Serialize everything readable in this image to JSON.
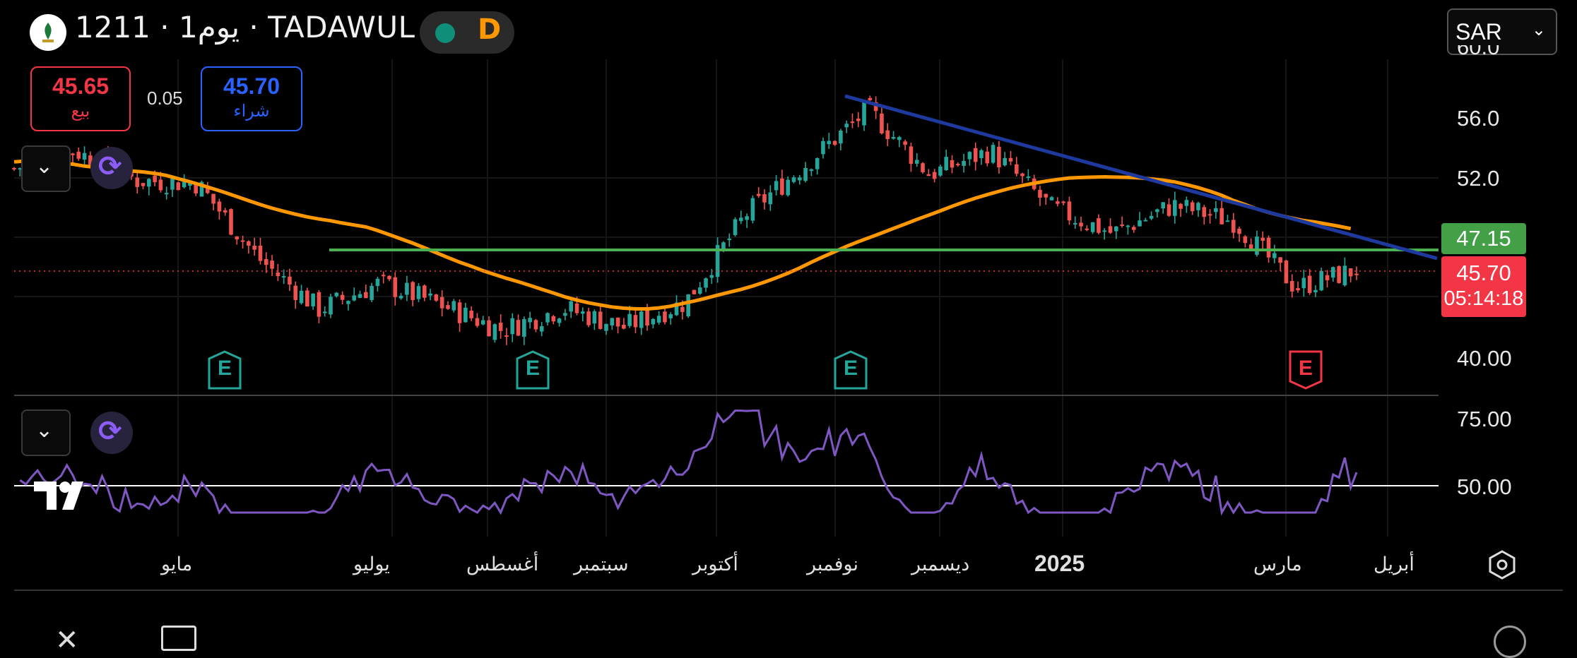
{
  "header": {
    "symbol": "1211",
    "interval": "1يوم",
    "exchange": "TADAWUL",
    "market_status_letter": "D",
    "currency": "SAR",
    "currency_chevron": "chevron-down-icon"
  },
  "trade": {
    "sell_price": "45.65",
    "sell_label": "بيع",
    "spread": "0.05",
    "buy_price": "45.70",
    "buy_label": "شراء"
  },
  "price_axis": {
    "ticks": [
      "56.0",
      "52.0",
      "40.00"
    ],
    "partial_top_tick": "60.0"
  },
  "price_tags": {
    "resistance": "47.15",
    "last_price": "45.70",
    "countdown": "05:14:18"
  },
  "rsi_axis": {
    "ticks": [
      "75.00",
      "50.00"
    ]
  },
  "time_axis": {
    "labels": [
      "مايو",
      "يوليو",
      "أغسطس",
      "سبتمبر",
      "أكتوبر",
      "نوفمبر",
      "ديسمبر",
      "2025",
      "مارس",
      "أبريل"
    ]
  },
  "earnings_markers": [
    "E",
    "E",
    "E",
    "E"
  ],
  "colors": {
    "bull": "#26a69a",
    "bear": "#ef5350",
    "ma": "#ff9800",
    "trendline": "#1e3a9e",
    "support": "#4caf50",
    "rsi": "#7e57c2",
    "sell": "#f23645",
    "buy": "#2962ff",
    "last_price_tag": "#f23645",
    "support_tag": "#43a047"
  },
  "chart_data": {
    "type": "candlestick",
    "price_axis_range": [
      40.0,
      56.0
    ],
    "close_series_approx": [
      {
        "date": "2024-04",
        "close": 52.6
      },
      {
        "date": "2024-05",
        "close": 53.8
      },
      {
        "date": "2024-05-mid",
        "close": 51.8
      },
      {
        "date": "2024-06",
        "close": 51.6
      },
      {
        "date": "2024-06-mid",
        "close": 46.5
      },
      {
        "date": "2024-07",
        "close": 43.0
      },
      {
        "date": "2024-07-mid",
        "close": 44.8
      },
      {
        "date": "2024-08",
        "close": 43.3
      },
      {
        "date": "2024-08-mid",
        "close": 41.6
      },
      {
        "date": "2024-09",
        "close": 43.1
      },
      {
        "date": "2024-09-mid",
        "close": 41.8
      },
      {
        "date": "2024-10",
        "close": 43.5
      },
      {
        "date": "2024-10-mid",
        "close": 49.5
      },
      {
        "date": "2024-11",
        "close": 53.0
      },
      {
        "date": "2024-11-mid",
        "close": 56.6
      },
      {
        "date": "2024-12",
        "close": 52.2
      },
      {
        "date": "2024-12-mid",
        "close": 53.8
      },
      {
        "date": "2025-01",
        "close": 49.9
      },
      {
        "date": "2025-01-mid",
        "close": 48.2
      },
      {
        "date": "2025-02",
        "close": 50.1
      },
      {
        "date": "2025-02-mid",
        "close": 49.0
      },
      {
        "date": "2025-03",
        "close": 44.5
      },
      {
        "date": "2025-03-mid",
        "close": 45.7
      }
    ],
    "support_level": 47.15,
    "last_price": 45.7,
    "rsi_levels": [
      75,
      50
    ]
  }
}
